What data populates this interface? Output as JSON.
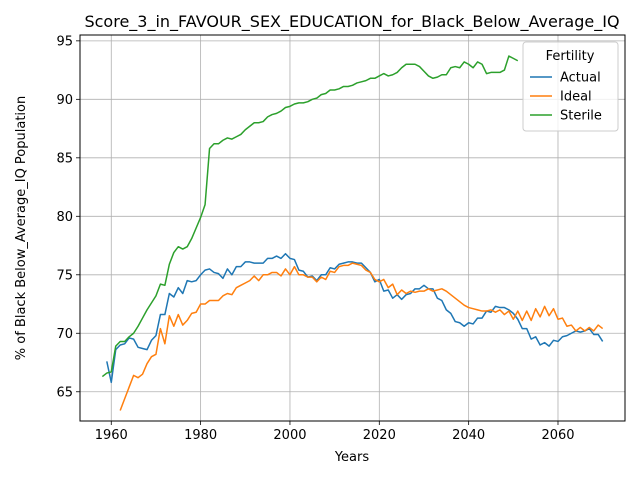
{
  "chart_data": {
    "type": "line",
    "title": "Score_3_in_FAVOUR_SEX_EDUCATION_for_Black_Below_Average_IQ",
    "xlabel": "Years",
    "ylabel": "% of Black Below_Average_IQ Population",
    "xlim": [
      1953,
      2075
    ],
    "ylim": [
      62.5,
      95.5
    ],
    "xticks": [
      1960,
      1980,
      2000,
      2020,
      2040,
      2060
    ],
    "yticks": [
      65,
      70,
      75,
      80,
      85,
      90,
      95
    ],
    "grid": true,
    "legend": {
      "title": "Fertility",
      "placement": "top-right"
    },
    "series": [
      {
        "name": "Actual",
        "color": "#1f77b4",
        "x": [
          1959,
          1960,
          1961,
          1962,
          1963,
          1964,
          1965,
          1966,
          1967,
          1968,
          1969,
          1970,
          1971,
          1972,
          1973,
          1974,
          1975,
          1976,
          1977,
          1978,
          1979,
          1980,
          1981,
          1982,
          1983,
          1984,
          1985,
          1986,
          1987,
          1988,
          1989,
          1990,
          1991,
          1992,
          1993,
          1994,
          1995,
          1996,
          1997,
          1998,
          1999,
          2000,
          2001,
          2002,
          2003,
          2004,
          2005,
          2006,
          2007,
          2008,
          2009,
          2010,
          2011,
          2012,
          2013,
          2014,
          2015,
          2016,
          2017,
          2018,
          2019,
          2020,
          2021,
          2022,
          2023,
          2024,
          2025,
          2026,
          2027,
          2028,
          2029,
          2030,
          2031,
          2032,
          2033,
          2034,
          2035,
          2036,
          2037,
          2038,
          2039,
          2040,
          2041,
          2042,
          2043,
          2044,
          2045,
          2046,
          2047,
          2048,
          2049,
          2050,
          2051,
          2052,
          2053,
          2054,
          2055,
          2056,
          2057,
          2058,
          2059,
          2060,
          2061,
          2062,
          2063,
          2064,
          2065,
          2066,
          2067,
          2068,
          2069,
          2070
        ],
        "values": [
          67.6,
          65.8,
          68.6,
          69.0,
          69.1,
          69.6,
          69.5,
          68.8,
          68.7,
          68.6,
          69.4,
          69.8,
          71.6,
          71.6,
          73.4,
          73.1,
          73.9,
          73.4,
          74.5,
          74.4,
          74.5,
          75.0,
          75.4,
          75.5,
          75.2,
          75.1,
          74.7,
          75.5,
          75.0,
          75.7,
          75.7,
          76.1,
          76.1,
          76.0,
          76.0,
          76.0,
          76.4,
          76.4,
          76.6,
          76.4,
          76.8,
          76.4,
          76.3,
          75.4,
          75.3,
          74.8,
          74.9,
          74.5,
          75.0,
          75.0,
          75.6,
          75.5,
          75.9,
          76.0,
          76.1,
          76.1,
          76.0,
          76.0,
          75.6,
          75.2,
          74.4,
          74.6,
          73.6,
          73.7,
          73.0,
          73.3,
          72.9,
          73.3,
          73.4,
          73.8,
          73.8,
          74.1,
          73.8,
          73.8,
          73.0,
          72.8,
          72.0,
          71.7,
          71.0,
          70.9,
          70.6,
          70.9,
          70.8,
          71.3,
          71.3,
          71.9,
          71.8,
          72.3,
          72.2,
          72.2,
          72.0,
          71.7,
          71.2,
          70.4,
          70.4,
          69.5,
          69.7,
          69.0,
          69.2,
          68.9,
          69.4,
          69.3,
          69.7,
          69.8,
          70.0,
          70.2,
          70.1,
          70.2,
          70.4,
          69.9,
          69.9,
          69.3
        ]
      },
      {
        "name": "Ideal",
        "color": "#ff7f0e",
        "x": [
          1962,
          1963,
          1964,
          1965,
          1966,
          1967,
          1968,
          1969,
          1970,
          1971,
          1972,
          1973,
          1974,
          1975,
          1976,
          1977,
          1978,
          1979,
          1980,
          1981,
          1982,
          1983,
          1984,
          1985,
          1986,
          1987,
          1988,
          1989,
          1990,
          1991,
          1992,
          1993,
          1994,
          1995,
          1996,
          1997,
          1998,
          1999,
          2000,
          2001,
          2002,
          2003,
          2004,
          2005,
          2006,
          2007,
          2008,
          2009,
          2010,
          2011,
          2012,
          2013,
          2014,
          2015,
          2016,
          2017,
          2018,
          2019,
          2020,
          2021,
          2022,
          2023,
          2024,
          2025,
          2026,
          2027,
          2028,
          2029,
          2030,
          2031,
          2032,
          2033,
          2034,
          2035,
          2036,
          2037,
          2038,
          2039,
          2040,
          2041,
          2042,
          2043,
          2044,
          2045,
          2046,
          2047,
          2048,
          2049,
          2050,
          2051,
          2052,
          2053,
          2054,
          2055,
          2056,
          2057,
          2058,
          2059,
          2060,
          2061,
          2062,
          2063,
          2064,
          2065,
          2066,
          2067,
          2068,
          2069,
          2070
        ],
        "values": [
          63.4,
          64.4,
          65.4,
          66.4,
          66.2,
          66.5,
          67.4,
          68.0,
          68.2,
          70.4,
          69.1,
          71.5,
          70.6,
          71.6,
          70.7,
          71.1,
          71.7,
          71.8,
          72.5,
          72.5,
          72.8,
          72.8,
          72.8,
          73.2,
          73.4,
          73.3,
          73.9,
          74.1,
          74.3,
          74.5,
          74.9,
          74.5,
          75.0,
          75.0,
          75.2,
          75.2,
          74.9,
          75.5,
          75.0,
          75.7,
          75.0,
          75.0,
          74.8,
          74.8,
          74.4,
          74.8,
          74.6,
          75.3,
          75.2,
          75.7,
          75.8,
          75.8,
          76.0,
          75.9,
          75.8,
          75.4,
          75.2,
          74.6,
          74.4,
          74.6,
          73.9,
          74.2,
          73.3,
          73.7,
          73.4,
          73.6,
          73.5,
          73.6,
          73.6,
          73.8,
          73.6,
          73.7,
          73.8,
          73.6,
          73.3,
          73.0,
          72.7,
          72.4,
          72.2,
          72.1,
          72.0,
          71.9,
          71.9,
          72.0,
          71.8,
          72.0,
          71.6,
          71.9,
          71.2,
          71.9,
          71.1,
          71.9,
          71.1,
          72.1,
          71.4,
          72.3,
          71.5,
          72.1,
          71.2,
          71.3,
          70.6,
          70.7,
          70.2,
          70.5,
          70.2,
          70.5,
          70.2,
          70.7,
          70.4
        ]
      },
      {
        "name": "Sterile",
        "color": "#2ca02c",
        "x": [
          1958,
          1959,
          1960,
          1961,
          1962,
          1963,
          1964,
          1965,
          1966,
          1967,
          1968,
          1969,
          1970,
          1971,
          1972,
          1973,
          1974,
          1975,
          1976,
          1977,
          1978,
          1979,
          1980,
          1981,
          1982,
          1983,
          1984,
          1985,
          1986,
          1987,
          1988,
          1989,
          1990,
          1991,
          1992,
          1993,
          1994,
          1995,
          1996,
          1997,
          1998,
          1999,
          2000,
          2001,
          2002,
          2003,
          2004,
          2005,
          2006,
          2007,
          2008,
          2009,
          2010,
          2011,
          2012,
          2013,
          2014,
          2015,
          2016,
          2017,
          2018,
          2019,
          2020,
          2021,
          2022,
          2023,
          2024,
          2025,
          2026,
          2027,
          2028,
          2029,
          2030,
          2031,
          2032,
          2033,
          2034,
          2035,
          2036,
          2037,
          2038,
          2039,
          2040,
          2041,
          2042,
          2043,
          2044,
          2045,
          2046,
          2047,
          2048,
          2049,
          2050,
          2051
        ],
        "values": [
          66.3,
          66.6,
          66.7,
          68.9,
          69.3,
          69.3,
          69.7,
          70.0,
          70.6,
          71.3,
          72.0,
          72.6,
          73.2,
          74.2,
          74.1,
          75.9,
          76.9,
          77.4,
          77.2,
          77.4,
          78.1,
          79.0,
          79.9,
          81.0,
          85.8,
          86.2,
          86.2,
          86.5,
          86.7,
          86.6,
          86.8,
          87.0,
          87.4,
          87.7,
          88.0,
          88.0,
          88.1,
          88.5,
          88.7,
          88.8,
          89.0,
          89.3,
          89.4,
          89.6,
          89.7,
          89.7,
          89.8,
          90.0,
          90.1,
          90.4,
          90.5,
          90.8,
          90.8,
          90.9,
          91.1,
          91.1,
          91.2,
          91.4,
          91.5,
          91.6,
          91.8,
          91.8,
          92.0,
          92.2,
          92.0,
          92.1,
          92.3,
          92.7,
          93.0,
          93.0,
          93.0,
          92.8,
          92.4,
          92.0,
          91.8,
          91.9,
          92.1,
          92.1,
          92.7,
          92.8,
          92.7,
          93.2,
          93.0,
          92.7,
          93.2,
          93.0,
          92.2,
          92.3,
          92.3,
          92.3,
          92.5,
          93.7,
          93.5,
          93.3
        ]
      }
    ]
  }
}
